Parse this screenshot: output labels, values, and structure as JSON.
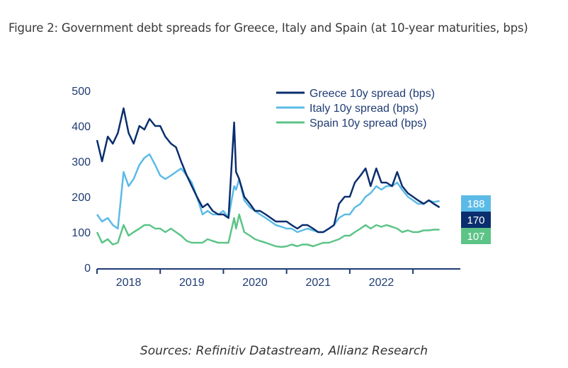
{
  "figure": {
    "title": "Figure 2: Government debt spreads for Greece, Italy and Spain (at 10-year maturities, bps)",
    "source": "Sources: Refinitiv Datastream, Allianz Research"
  },
  "chart_data": {
    "type": "line",
    "title": "Figure 2: Government debt spreads for Greece, Italy and Spain (at 10-year maturities, bps)",
    "xlabel": "",
    "ylabel": "",
    "ylim": [
      0,
      500
    ],
    "yticks": [
      0,
      100,
      200,
      300,
      400,
      500
    ],
    "xlim": [
      2018.0,
      2023.5
    ],
    "xticks_boundaries": [
      2018,
      2019,
      2020,
      2021,
      2022,
      2023
    ],
    "xtick_labels": [
      "2018",
      "2019",
      "2020",
      "2021",
      "2022"
    ],
    "grid": false,
    "legend_position": "top-right",
    "x": [
      2018.0,
      2018.08,
      2018.17,
      2018.25,
      2018.33,
      2018.42,
      2018.5,
      2018.58,
      2018.67,
      2018.75,
      2018.83,
      2018.92,
      2019.0,
      2019.08,
      2019.17,
      2019.25,
      2019.33,
      2019.42,
      2019.5,
      2019.58,
      2019.67,
      2019.75,
      2019.83,
      2019.92,
      2020.0,
      2020.08,
      2020.17,
      2020.2,
      2020.25,
      2020.33,
      2020.42,
      2020.5,
      2020.58,
      2020.67,
      2020.75,
      2020.83,
      2020.92,
      2021.0,
      2021.08,
      2021.17,
      2021.25,
      2021.33,
      2021.42,
      2021.5,
      2021.58,
      2021.67,
      2021.75,
      2021.83,
      2021.92,
      2022.0,
      2022.08,
      2022.17,
      2022.25,
      2022.33,
      2022.42,
      2022.5,
      2022.58,
      2022.67,
      2022.75,
      2022.83,
      2022.92,
      2023.0,
      2023.08,
      2023.17,
      2023.25,
      2023.33,
      2023.42
    ],
    "series": [
      {
        "name": "Greece 10y spread (bps)",
        "color": "#0a2e6e",
        "values": [
          360,
          300,
          370,
          350,
          380,
          450,
          380,
          350,
          400,
          390,
          420,
          400,
          400,
          370,
          350,
          340,
          300,
          260,
          230,
          200,
          170,
          180,
          160,
          150,
          150,
          140,
          410,
          270,
          250,
          200,
          180,
          160,
          160,
          150,
          140,
          130,
          130,
          130,
          120,
          110,
          120,
          120,
          110,
          100,
          100,
          110,
          120,
          180,
          200,
          200,
          240,
          260,
          280,
          230,
          280,
          240,
          240,
          230,
          270,
          230,
          210,
          200,
          190,
          180,
          190,
          180,
          170
        ]
      },
      {
        "name": "Italy 10y spread (bps)",
        "color": "#5bbbe6",
        "values": [
          150,
          130,
          140,
          120,
          110,
          270,
          230,
          250,
          290,
          310,
          320,
          290,
          260,
          250,
          260,
          270,
          280,
          260,
          240,
          200,
          150,
          160,
          150,
          150,
          160,
          140,
          230,
          220,
          250,
          190,
          170,
          160,
          150,
          140,
          130,
          120,
          115,
          110,
          110,
          100,
          105,
          110,
          105,
          100,
          100,
          110,
          120,
          140,
          150,
          150,
          170,
          180,
          200,
          210,
          230,
          220,
          230,
          230,
          240,
          220,
          200,
          190,
          180,
          180,
          190,
          185,
          188
        ]
      },
      {
        "name": "Spain 10y spread (bps)",
        "color": "#5cc487",
        "values": [
          100,
          70,
          80,
          65,
          70,
          120,
          90,
          100,
          110,
          120,
          120,
          110,
          110,
          100,
          110,
          100,
          90,
          75,
          70,
          70,
          70,
          80,
          75,
          70,
          70,
          70,
          140,
          110,
          150,
          100,
          90,
          80,
          75,
          70,
          65,
          60,
          58,
          60,
          65,
          60,
          65,
          65,
          60,
          65,
          70,
          70,
          75,
          80,
          90,
          90,
          100,
          110,
          120,
          110,
          120,
          115,
          120,
          115,
          110,
          100,
          105,
          100,
          100,
          105,
          105,
          107,
          107
        ]
      }
    ],
    "end_value_badges": [
      {
        "series": "Italy 10y spread (bps)",
        "value": "188",
        "color": "#5bbbe6"
      },
      {
        "series": "Greece 10y spread (bps)",
        "value": "170",
        "color": "#0a2e6e"
      },
      {
        "series": "Spain 10y spread (bps)",
        "value": "107",
        "color": "#5cc487"
      }
    ],
    "axis_color": "#1f3b73"
  }
}
